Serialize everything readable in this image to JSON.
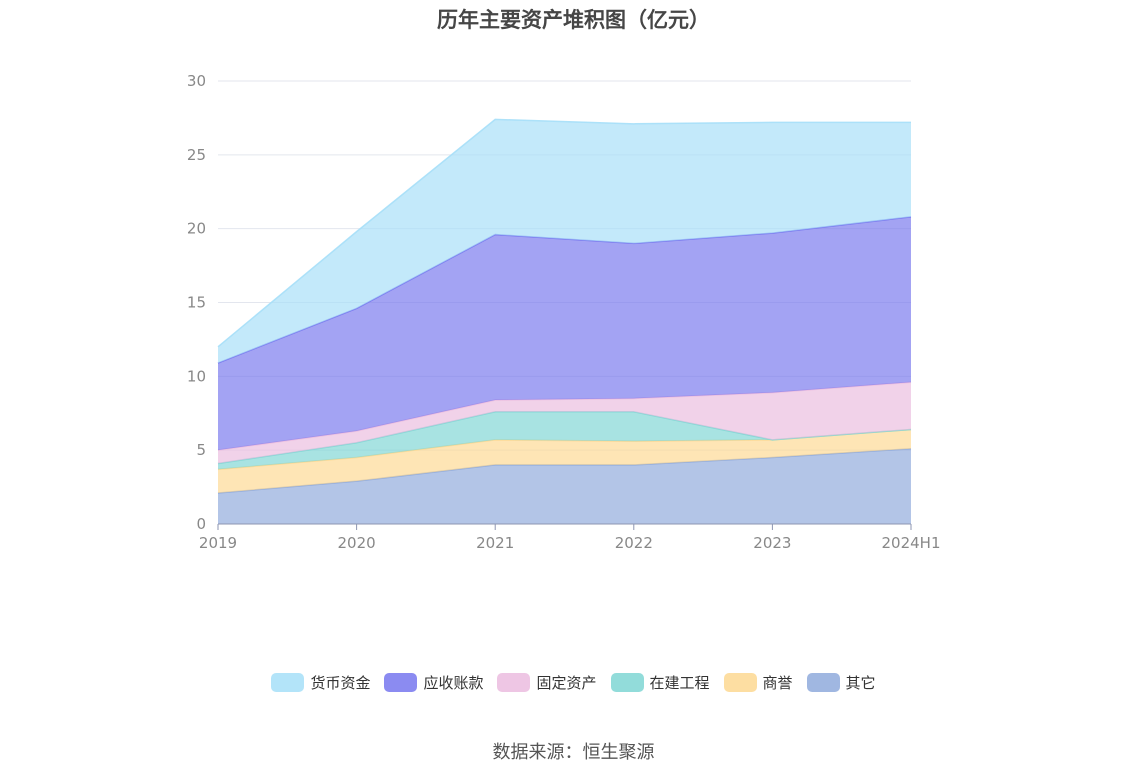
{
  "chart_data": {
    "type": "area",
    "stacked": true,
    "title": "历年主要资产堆积图（亿元）",
    "categories": [
      "2019",
      "2020",
      "2021",
      "2022",
      "2023",
      "2024H1"
    ],
    "ylim": [
      0,
      30
    ],
    "yticks": [
      0,
      5,
      10,
      15,
      20,
      25,
      30
    ],
    "series": [
      {
        "name": "其它",
        "color": "#8faadc",
        "values": [
          2.1,
          2.9,
          4.0,
          4.0,
          4.5,
          5.1
        ]
      },
      {
        "name": "商誉",
        "color": "#fdd892",
        "values": [
          1.6,
          1.6,
          1.7,
          1.6,
          1.2,
          1.3
        ]
      },
      {
        "name": "在建工程",
        "color": "#7fd6d4",
        "values": [
          0.4,
          1.0,
          1.9,
          2.0,
          0.0,
          0.0
        ]
      },
      {
        "name": "固定资产",
        "color": "#ebbcdf",
        "values": [
          0.9,
          0.8,
          0.8,
          0.9,
          3.2,
          3.2
        ]
      },
      {
        "name": "应收账款",
        "color": "#7777ee",
        "values": [
          5.9,
          8.3,
          11.2,
          10.5,
          10.8,
          11.2
        ]
      },
      {
        "name": "货币资金",
        "color": "#a6dff8",
        "values": [
          1.1,
          5.2,
          7.8,
          8.1,
          7.5,
          6.4
        ]
      }
    ],
    "legend": [
      "货币资金",
      "应收账款",
      "固定资产",
      "在建工程",
      "商誉",
      "其它"
    ],
    "grid": true,
    "legend_position": "bottom"
  },
  "source_text": "数据来源：恒生聚源"
}
